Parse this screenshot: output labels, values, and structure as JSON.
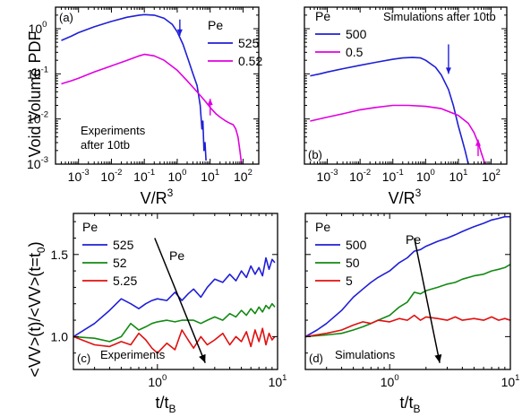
{
  "chart_data": [
    {
      "id": "a",
      "type": "line",
      "panel_label": "(a)",
      "xscale": "log",
      "yscale": "log",
      "xlim": [
        0.0002,
        300
      ],
      "ylim": [
        0.001,
        3
      ],
      "x_ticks": [
        {
          "v": 0.001,
          "b": "10",
          "e": "-3"
        },
        {
          "v": 0.01,
          "b": "10",
          "e": "-2"
        },
        {
          "v": 0.1,
          "b": "10",
          "e": "-1"
        },
        {
          "v": 1,
          "b": "10",
          "e": "0"
        },
        {
          "v": 10,
          "b": "10",
          "e": "1"
        },
        {
          "v": 100,
          "b": "10",
          "e": "2"
        }
      ],
      "y_ticks": [
        {
          "v": 0.001,
          "b": "10",
          "e": "-3"
        },
        {
          "v": 0.01,
          "b": "10",
          "e": "-2"
        },
        {
          "v": 0.1,
          "b": "10",
          "e": "-1"
        },
        {
          "v": 1,
          "b": "10",
          "e": "0"
        }
      ],
      "legend_title": "Pe",
      "annotation": [
        "Experiments",
        "after 10tb"
      ],
      "series": [
        {
          "name": "525",
          "color": "#1f1fd6",
          "x": [
            0.0003,
            0.0006,
            0.001,
            0.003,
            0.01,
            0.03,
            0.07,
            0.1,
            0.2,
            0.4,
            0.7,
            1.0,
            1.5,
            2.2,
            3.0,
            4.0,
            5.0,
            5.6,
            6.0,
            6.5,
            7.0,
            7.5
          ],
          "y": [
            0.55,
            0.68,
            0.82,
            1.1,
            1.45,
            1.8,
            2.0,
            2.05,
            2.0,
            1.7,
            1.25,
            0.85,
            0.45,
            0.2,
            0.1,
            0.055,
            0.02,
            0.006,
            0.009,
            0.002,
            0.003,
            0.0012
          ]
        },
        {
          "name": "0.52",
          "color": "#e000e0",
          "x": [
            0.0003,
            0.0006,
            0.001,
            0.003,
            0.01,
            0.03,
            0.07,
            0.1,
            0.2,
            0.4,
            1.0,
            2.0,
            4.0,
            7.0,
            10,
            15,
            20,
            30,
            40,
            50,
            60,
            70,
            80,
            90
          ],
          "y": [
            0.06,
            0.07,
            0.08,
            0.11,
            0.15,
            0.2,
            0.25,
            0.27,
            0.25,
            0.2,
            0.12,
            0.07,
            0.04,
            0.025,
            0.018,
            0.013,
            0.011,
            0.009,
            0.008,
            0.0075,
            0.006,
            0.004,
            0.002,
            0.001
          ]
        }
      ],
      "arrows": [
        {
          "color": "#1f1fd6",
          "x": 1.2,
          "y_from": 1.6,
          "y_to": 0.7
        },
        {
          "color": "#e000e0",
          "x": 10,
          "y_from": 0.012,
          "y_to": 0.028
        }
      ]
    },
    {
      "id": "b",
      "type": "line",
      "panel_label": "(b)",
      "xscale": "log",
      "yscale": "log",
      "xlim": [
        0.0002,
        300
      ],
      "ylim": [
        0.001,
        3
      ],
      "x_ticks": [
        {
          "v": 0.001,
          "b": "10",
          "e": "-3"
        },
        {
          "v": 0.01,
          "b": "10",
          "e": "-2"
        },
        {
          "v": 0.1,
          "b": "10",
          "e": "-1"
        },
        {
          "v": 1,
          "b": "10",
          "e": "0"
        },
        {
          "v": 10,
          "b": "10",
          "e": "1"
        },
        {
          "v": 100,
          "b": "10",
          "e": "2"
        }
      ],
      "y_ticks": [
        {
          "v": 0.001
        },
        {
          "v": 0.01
        },
        {
          "v": 0.1
        },
        {
          "v": 1
        }
      ],
      "legend_title": "Pe",
      "annotation": [
        "Simulations after 10tb"
      ],
      "series": [
        {
          "name": "500",
          "color": "#1f1fd6",
          "x": [
            0.0003,
            0.0006,
            0.001,
            0.003,
            0.01,
            0.03,
            0.1,
            0.2,
            0.4,
            0.7,
            1.0,
            2.0,
            3.0,
            5.0,
            7.0,
            10,
            13,
            16,
            18,
            20
          ],
          "y": [
            0.09,
            0.1,
            0.11,
            0.13,
            0.155,
            0.18,
            0.21,
            0.225,
            0.23,
            0.225,
            0.2,
            0.14,
            0.095,
            0.045,
            0.02,
            0.007,
            0.0035,
            0.002,
            0.0014,
            0.001
          ]
        },
        {
          "name": "0.5",
          "color": "#e000e0",
          "x": [
            0.0003,
            0.001,
            0.003,
            0.01,
            0.03,
            0.1,
            0.3,
            1.0,
            3.0,
            10,
            20,
            30,
            40,
            50,
            60,
            65
          ],
          "y": [
            0.009,
            0.011,
            0.013,
            0.016,
            0.018,
            0.02,
            0.02,
            0.019,
            0.017,
            0.012,
            0.008,
            0.005,
            0.003,
            0.0018,
            0.0012,
            0.001
          ]
        }
      ],
      "arrows": [
        {
          "color": "#1f1fd6",
          "x": 5,
          "y_from": 0.45,
          "y_to": 0.1
        },
        {
          "color": "#e000e0",
          "x": 40,
          "y_from": 0.0015,
          "y_to": 0.0035
        }
      ]
    },
    {
      "id": "c",
      "type": "line",
      "panel_label": "(c)",
      "xscale": "log",
      "yscale": "linear",
      "xlim": [
        0.2,
        10
      ],
      "ylim": [
        0.8,
        1.75
      ],
      "x_ticks": [
        {
          "v": 1,
          "b": "10",
          "e": "0"
        },
        {
          "v": 10,
          "b": "10",
          "e": "1"
        }
      ],
      "y_ticks": [
        {
          "v": 1.0,
          "t": "1.0"
        },
        {
          "v": 1.5,
          "t": "1.5"
        }
      ],
      "legend_title": "Pe",
      "annotation": [
        "Experiments"
      ],
      "arrow_label": "Pe",
      "big_arrow": {
        "x0": 0.95,
        "y0": 1.6,
        "x1": 2.5,
        "y1": 0.84
      },
      "series": [
        {
          "name": "525",
          "color": "#1f1fd6",
          "x": [
            0.2,
            0.3,
            0.4,
            0.5,
            0.6,
            0.7,
            0.8,
            0.9,
            1.0,
            1.2,
            1.4,
            1.6,
            1.8,
            2.0,
            2.3,
            2.6,
            3.0,
            3.5,
            4.0,
            4.5,
            5.0,
            5.5,
            6.0,
            6.5,
            7.0,
            7.5,
            8.0,
            8.5,
            9.0,
            9.5
          ],
          "y": [
            1.0,
            1.08,
            1.16,
            1.23,
            1.2,
            1.17,
            1.2,
            1.22,
            1.23,
            1.22,
            1.27,
            1.22,
            1.26,
            1.29,
            1.24,
            1.3,
            1.35,
            1.33,
            1.38,
            1.34,
            1.4,
            1.36,
            1.43,
            1.38,
            1.42,
            1.37,
            1.48,
            1.41,
            1.47,
            1.45
          ]
        },
        {
          "name": "52",
          "color": "#138a13",
          "x": [
            0.2,
            0.3,
            0.4,
            0.5,
            0.6,
            0.7,
            0.8,
            0.9,
            1.0,
            1.2,
            1.4,
            1.6,
            1.8,
            2.0,
            2.3,
            2.6,
            3.0,
            3.5,
            4.0,
            4.5,
            5.0,
            5.5,
            6.0,
            6.5,
            7.0,
            7.5,
            8.0,
            8.5,
            9.0,
            9.5
          ],
          "y": [
            1.0,
            0.99,
            0.97,
            1.0,
            1.08,
            1.04,
            1.06,
            1.08,
            1.09,
            1.1,
            1.09,
            1.1,
            1.1,
            1.1,
            1.08,
            1.1,
            1.12,
            1.1,
            1.14,
            1.12,
            1.16,
            1.13,
            1.17,
            1.14,
            1.18,
            1.15,
            1.19,
            1.17,
            1.2,
            1.18
          ]
        },
        {
          "name": "5.25",
          "color": "#e01010",
          "x": [
            0.2,
            0.3,
            0.4,
            0.5,
            0.6,
            0.7,
            0.8,
            0.9,
            1.0,
            1.2,
            1.4,
            1.6,
            1.8,
            2.0,
            2.3,
            2.6,
            3.0,
            3.5,
            4.0,
            4.5,
            5.0,
            5.5,
            6.0,
            6.5,
            7.0,
            7.5,
            8.0,
            8.5,
            9.0,
            9.5
          ],
          "y": [
            1.0,
            0.95,
            0.94,
            0.97,
            0.95,
            1.02,
            0.98,
            0.93,
            0.9,
            0.96,
            0.92,
            1.04,
            0.98,
            0.93,
            1.0,
            0.95,
            0.98,
            1.02,
            0.95,
            1.0,
            0.97,
            1.03,
            0.94,
            1.04,
            0.97,
            1.05,
            0.95,
            1.02,
            0.98,
            1.0
          ]
        }
      ]
    },
    {
      "id": "d",
      "type": "line",
      "panel_label": "(d)",
      "xscale": "log",
      "yscale": "linear",
      "xlim": [
        0.2,
        10
      ],
      "ylim": [
        0.8,
        1.75
      ],
      "x_ticks": [
        {
          "v": 1,
          "b": "10",
          "e": "0"
        },
        {
          "v": 10,
          "b": "10",
          "e": "1"
        }
      ],
      "y_ticks": [
        {
          "v": 1.0
        },
        {
          "v": 1.5
        }
      ],
      "legend_title": "Pe",
      "annotation": [
        "Simulations"
      ],
      "arrow_label": "Pe",
      "big_arrow": {
        "x0": 1.6,
        "y0": 1.6,
        "x1": 2.6,
        "y1": 0.84
      },
      "series": [
        {
          "name": "500",
          "color": "#1f1fd6",
          "x": [
            0.2,
            0.25,
            0.3,
            0.4,
            0.5,
            0.6,
            0.7,
            0.8,
            1.0,
            1.2,
            1.4,
            1.6,
            1.8,
            2.0,
            2.5,
            3.0,
            3.5,
            4.0,
            5.0,
            6.0,
            7.0,
            8.0,
            9.0,
            10.0
          ],
          "y": [
            1.0,
            1.04,
            1.08,
            1.16,
            1.24,
            1.29,
            1.33,
            1.36,
            1.4,
            1.45,
            1.48,
            1.52,
            1.53,
            1.55,
            1.58,
            1.6,
            1.62,
            1.64,
            1.67,
            1.69,
            1.71,
            1.72,
            1.73,
            1.73
          ]
        },
        {
          "name": "50",
          "color": "#138a13",
          "x": [
            0.2,
            0.3,
            0.4,
            0.5,
            0.6,
            0.7,
            0.8,
            1.0,
            1.2,
            1.4,
            1.6,
            1.8,
            2.0,
            2.5,
            3.0,
            3.5,
            4.0,
            5.0,
            6.0,
            7.0,
            8.0,
            9.0,
            10.0
          ],
          "y": [
            1.0,
            1.01,
            1.02,
            1.04,
            1.06,
            1.08,
            1.1,
            1.13,
            1.18,
            1.21,
            1.27,
            1.26,
            1.28,
            1.3,
            1.32,
            1.33,
            1.35,
            1.37,
            1.38,
            1.4,
            1.41,
            1.42,
            1.44
          ]
        },
        {
          "name": "5",
          "color": "#e01010",
          "x": [
            0.2,
            0.3,
            0.4,
            0.5,
            0.6,
            0.7,
            0.8,
            1.0,
            1.2,
            1.4,
            1.6,
            1.8,
            2.0,
            2.5,
            3.0,
            3.5,
            4.0,
            5.0,
            6.0,
            7.0,
            8.0,
            9.0,
            10.0
          ],
          "y": [
            1.0,
            1.02,
            1.04,
            1.07,
            1.09,
            1.08,
            1.1,
            1.09,
            1.11,
            1.1,
            1.13,
            1.1,
            1.12,
            1.11,
            1.1,
            1.12,
            1.1,
            1.11,
            1.1,
            1.12,
            1.1,
            1.11,
            1.1
          ]
        }
      ]
    }
  ],
  "axis_labels": {
    "top_y": "Void Volume PDF",
    "bottom_y": "<VV>(t)/<VV>(t=t",
    "bottom_y_sub": "0",
    "bottom_y_end": ")",
    "top_x_base": "V/R",
    "top_x_sup": "3",
    "bottom_x_base": "t/t",
    "bottom_x_sub": "B"
  }
}
